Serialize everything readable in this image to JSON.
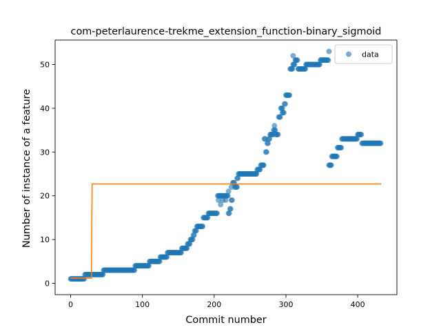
{
  "chart_data": {
    "type": "scatter",
    "title": "com-peterlaurence-trekme_extension_function-binary_sigmoid",
    "xlabel": "Commit number",
    "ylabel": "Number of instance of a feature",
    "xlim": [
      -21.6,
      454.6
    ],
    "ylim": [
      -2.6,
      55.6
    ],
    "xticks": [
      0,
      100,
      200,
      300,
      400
    ],
    "yticks": [
      0,
      10,
      20,
      30,
      40,
      50
    ],
    "grid": false,
    "legend": {
      "position": "top-right",
      "entries": [
        "data"
      ]
    },
    "colors": {
      "data": "#1f77b4",
      "fit": "#ff7f0e"
    },
    "series": [
      {
        "name": "data",
        "kind": "scatter",
        "segments": [
          [
            0,
            20,
            1
          ],
          [
            20,
            46,
            2
          ],
          [
            46,
            90,
            3
          ],
          [
            90,
            110,
            4
          ],
          [
            110,
            125,
            5
          ],
          [
            125,
            135,
            6
          ],
          [
            135,
            155,
            7
          ],
          [
            155,
            163,
            8
          ],
          [
            163,
            167,
            9
          ],
          [
            167,
            171,
            10
          ],
          [
            171,
            173,
            11
          ],
          [
            173,
            176,
            12
          ],
          [
            176,
            185,
            13
          ],
          [
            185,
            192,
            15
          ],
          [
            192,
            205,
            16
          ],
          [
            205,
            220,
            20
          ],
          [
            220,
            222,
            16
          ],
          [
            222,
            224,
            17
          ],
          [
            224,
            226,
            19
          ],
          [
            226,
            229,
            23
          ],
          [
            229,
            232,
            22
          ],
          [
            232,
            234,
            24
          ],
          [
            234,
            260,
            25
          ],
          [
            260,
            265,
            26
          ],
          [
            265,
            270,
            27
          ],
          [
            270,
            272,
            33
          ],
          [
            272,
            274,
            30
          ],
          [
            274,
            276,
            32
          ],
          [
            276,
            278,
            33
          ],
          [
            278,
            283,
            34
          ],
          [
            283,
            286,
            35
          ],
          [
            286,
            290,
            34
          ],
          [
            290,
            293,
            38
          ],
          [
            293,
            296,
            40
          ],
          [
            296,
            298,
            39
          ],
          [
            298,
            300,
            41
          ],
          [
            300,
            306,
            43
          ],
          [
            306,
            310,
            49
          ],
          [
            310,
            313,
            50
          ],
          [
            313,
            317,
            51
          ],
          [
            317,
            325,
            49
          ],
          [
            325,
            328,
            49
          ],
          [
            328,
            348,
            50
          ],
          [
            348,
            360,
            51
          ],
          [
            360,
            364,
            27
          ],
          [
            364,
            372,
            29
          ],
          [
            372,
            378,
            31
          ],
          [
            378,
            400,
            33
          ],
          [
            400,
            406,
            34
          ],
          [
            406,
            433,
            32
          ]
        ],
        "extra_points": [
          [
            206,
            19
          ],
          [
            209,
            18
          ],
          [
            212,
            19
          ],
          [
            216,
            19
          ],
          [
            220,
            21
          ],
          [
            224,
            22
          ],
          [
            232,
            22
          ],
          [
            258,
            25
          ],
          [
            268,
            27
          ],
          [
            284,
            36
          ],
          [
            295,
            39
          ],
          [
            310,
            52
          ],
          [
            360,
            53
          ],
          [
            362,
            27
          ],
          [
            368,
            29
          ],
          [
            386,
            33
          ],
          [
            402,
            34
          ]
        ]
      },
      {
        "name": "",
        "kind": "line",
        "x": [
          0,
          29,
          30,
          433
        ],
        "y": [
          1.2,
          1.2,
          22.7,
          22.7
        ]
      }
    ]
  }
}
